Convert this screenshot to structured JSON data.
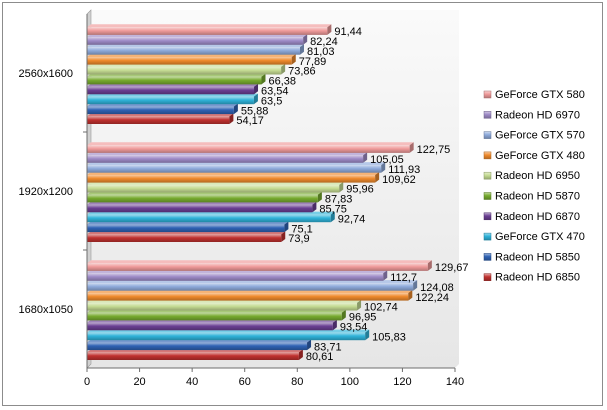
{
  "chart_data": {
    "type": "bar",
    "orientation": "horizontal",
    "categories": [
      "2560x1600",
      "1920x1200",
      "1680x1050"
    ],
    "series": [
      {
        "name": "Radeon HD 6850",
        "color": "#c0312f",
        "values": [
          54.17,
          73.9,
          80.61
        ],
        "labels": [
          "54,17",
          "73,9",
          "80,61"
        ]
      },
      {
        "name": "Radeon HD 5850",
        "color": "#2f62b4",
        "values": [
          55.88,
          75.1,
          83.71
        ],
        "labels": [
          "55,88",
          "75,1",
          "83,71"
        ]
      },
      {
        "name": "GeForce GTX 470",
        "color": "#2fb3d9",
        "values": [
          63.5,
          92.74,
          105.83
        ],
        "labels": [
          "63,5",
          "92,74",
          "105,83"
        ]
      },
      {
        "name": "Radeon HD 6870",
        "color": "#6a3f93",
        "values": [
          63.54,
          85.75,
          93.54
        ],
        "labels": [
          "63,54",
          "85,75",
          "93,54"
        ]
      },
      {
        "name": "Radeon HD 5870",
        "color": "#77ab2f",
        "values": [
          66.38,
          87.83,
          96.95
        ],
        "labels": [
          "66,38",
          "87,83",
          "96,95"
        ]
      },
      {
        "name": "Radeon HD 6950",
        "color": "#c5dc93",
        "values": [
          73.86,
          95.96,
          102.74
        ],
        "labels": [
          "73,86",
          "95,96",
          "102,74"
        ]
      },
      {
        "name": "GeForce GTX 480",
        "color": "#ef8a2c",
        "values": [
          77.89,
          109.62,
          122.24
        ],
        "labels": [
          "77,89",
          "109,62",
          "122,24"
        ]
      },
      {
        "name": "GeForce GTX 570",
        "color": "#8eaadb",
        "values": [
          81.03,
          111.93,
          124.08
        ],
        "labels": [
          "81,03",
          "111,93",
          "124,08"
        ]
      },
      {
        "name": "Radeon HD 6970",
        "color": "#9f8cc8",
        "values": [
          82.24,
          105.05,
          112.7
        ],
        "labels": [
          "82,24",
          "105,05",
          "112,7"
        ]
      },
      {
        "name": "GeForce GTX 580",
        "color": "#ef9a9a",
        "values": [
          91.44,
          122.75,
          129.67
        ],
        "labels": [
          "91,44",
          "122,75",
          "129,67"
        ]
      }
    ],
    "xlim": [
      0,
      140
    ],
    "xticks": [
      0,
      20,
      40,
      60,
      80,
      100,
      120,
      140
    ],
    "title": "",
    "xlabel": "",
    "ylabel": "",
    "grid": false,
    "legend_position": "right",
    "legend_order": [
      "GeForce GTX 580",
      "Radeon HD 6970",
      "GeForce GTX 570",
      "GeForce GTX 480",
      "Radeon HD 6950",
      "Radeon HD 5870",
      "Radeon HD 6870",
      "GeForce GTX 470",
      "Radeon HD 5850",
      "Radeon HD 6850"
    ]
  }
}
